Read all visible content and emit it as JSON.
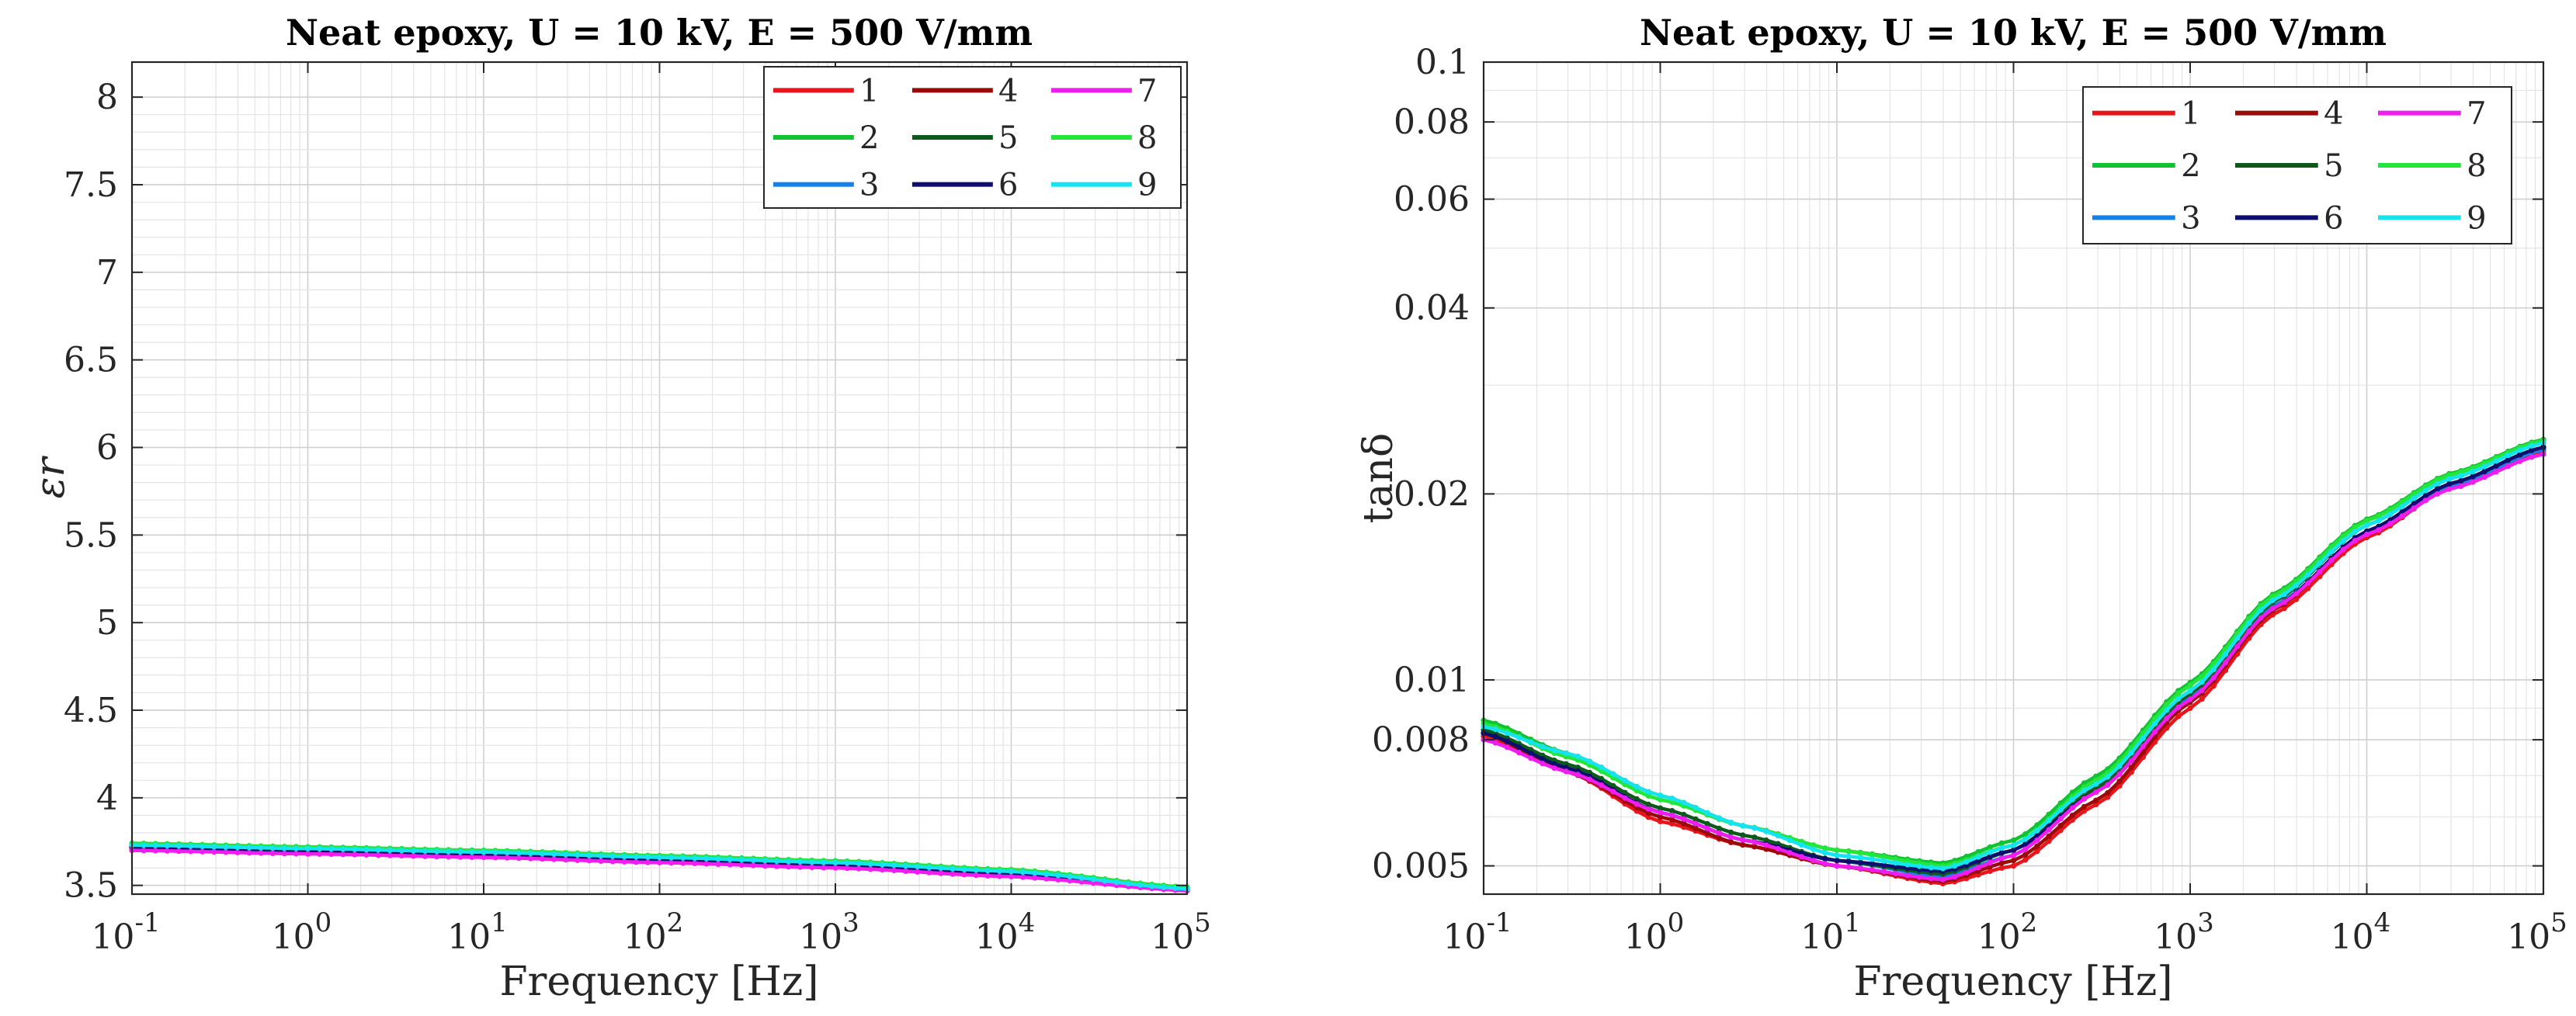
{
  "chart_data": [
    {
      "type": "line",
      "title": "Neat epoxy, U = 10 kV, E = 500 V/mm",
      "xlabel": "Frequency [Hz]",
      "ylabel": "εr",
      "xscale": "log",
      "xlim": [
        0.1,
        100000
      ],
      "ylim": [
        3.45,
        8.2
      ],
      "xticks": [
        {
          "base": "10",
          "exp": "-1"
        },
        {
          "base": "10",
          "exp": "0"
        },
        {
          "base": "10",
          "exp": "1"
        },
        {
          "base": "10",
          "exp": "2"
        },
        {
          "base": "10",
          "exp": "3"
        },
        {
          "base": "10",
          "exp": "4"
        },
        {
          "base": "10",
          "exp": "5"
        }
      ],
      "yticks": [
        {
          "value": 3.5,
          "label": "3.5"
        },
        {
          "value": 4,
          "label": "4"
        },
        {
          "value": 4.5,
          "label": "4.5"
        },
        {
          "value": 5,
          "label": "5"
        },
        {
          "value": 5.5,
          "label": "5.5"
        },
        {
          "value": 6,
          "label": "6"
        },
        {
          "value": 6.5,
          "label": "6.5"
        },
        {
          "value": 7,
          "label": "7"
        },
        {
          "value": 7.5,
          "label": "7.5"
        },
        {
          "value": 8,
          "label": "8"
        }
      ],
      "grid": true,
      "legend_position": "top-right",
      "x": [
        0.1,
        1,
        10,
        100,
        1000,
        10000,
        100000
      ],
      "series": [
        {
          "name": "1",
          "color": "#e8161b",
          "values": [
            3.71,
            3.69,
            3.67,
            3.64,
            3.61,
            3.56,
            3.47
          ]
        },
        {
          "name": "2",
          "color": "#10c431",
          "values": [
            3.74,
            3.71,
            3.69,
            3.66,
            3.63,
            3.58,
            3.49
          ]
        },
        {
          "name": "3",
          "color": "#1680e6",
          "values": [
            3.72,
            3.7,
            3.68,
            3.65,
            3.62,
            3.57,
            3.48
          ]
        },
        {
          "name": "4",
          "color": "#9c0a08",
          "values": [
            3.72,
            3.7,
            3.68,
            3.65,
            3.62,
            3.57,
            3.48
          ]
        },
        {
          "name": "5",
          "color": "#0c5a1a",
          "values": [
            3.73,
            3.7,
            3.68,
            3.65,
            3.62,
            3.57,
            3.48
          ]
        },
        {
          "name": "6",
          "color": "#0e0e6e",
          "values": [
            3.72,
            3.7,
            3.68,
            3.65,
            3.62,
            3.57,
            3.48
          ]
        },
        {
          "name": "7",
          "color": "#f01cf0",
          "values": [
            3.7,
            3.68,
            3.66,
            3.63,
            3.6,
            3.55,
            3.47
          ]
        },
        {
          "name": "8",
          "color": "#22e63a",
          "values": [
            3.74,
            3.72,
            3.7,
            3.67,
            3.64,
            3.59,
            3.49
          ]
        },
        {
          "name": "9",
          "color": "#14e4f0",
          "values": [
            3.73,
            3.71,
            3.69,
            3.66,
            3.63,
            3.58,
            3.48
          ]
        }
      ]
    },
    {
      "type": "line",
      "title": "Neat epoxy, U = 10 kV, E = 500 V/mm",
      "xlabel": "Frequency [Hz]",
      "ylabel": "tanδ",
      "xscale": "log",
      "yscale": "log",
      "xlim": [
        0.1,
        100000
      ],
      "ylim": [
        0.0045,
        0.1
      ],
      "xticks": [
        {
          "base": "10",
          "exp": "-1"
        },
        {
          "base": "10",
          "exp": "0"
        },
        {
          "base": "10",
          "exp": "1"
        },
        {
          "base": "10",
          "exp": "2"
        },
        {
          "base": "10",
          "exp": "3"
        },
        {
          "base": "10",
          "exp": "4"
        },
        {
          "base": "10",
          "exp": "5"
        }
      ],
      "yticks": [
        {
          "value": 0.005,
          "label": "0.005"
        },
        {
          "value": 0.008,
          "label": "0.008"
        },
        {
          "value": 0.01,
          "label": "0.01"
        },
        {
          "value": 0.02,
          "label": "0.02"
        },
        {
          "value": 0.04,
          "label": "0.04"
        },
        {
          "value": 0.06,
          "label": "0.06"
        },
        {
          "value": 0.08,
          "label": "0.08"
        },
        {
          "value": 0.1,
          "label": "0.1"
        }
      ],
      "grid": true,
      "legend_position": "top-right",
      "x": [
        0.1,
        0.3,
        1,
        3,
        10,
        40,
        100,
        300,
        1000,
        3000,
        10000,
        30000,
        100000
      ],
      "series": [
        {
          "name": "1",
          "color": "#e8161b",
          "values": [
            0.0081,
            0.0071,
            0.0059,
            0.0054,
            0.005,
            0.00468,
            0.005,
            0.0063,
            0.009,
            0.0128,
            0.017,
            0.0205,
            0.0235
          ]
        },
        {
          "name": "2",
          "color": "#10c431",
          "values": [
            0.0086,
            0.0076,
            0.0065,
            0.0058,
            0.0053,
            0.00505,
            0.0055,
            0.007,
            0.0099,
            0.0138,
            0.0182,
            0.0216,
            0.0245
          ]
        },
        {
          "name": "3",
          "color": "#1680e6",
          "values": [
            0.0082,
            0.0072,
            0.0061,
            0.0055,
            0.0051,
            0.0048,
            0.0052,
            0.0066,
            0.0094,
            0.0132,
            0.0172,
            0.0206,
            0.0236
          ]
        },
        {
          "name": "4",
          "color": "#9c0a08",
          "values": [
            0.0082,
            0.0071,
            0.006,
            0.0054,
            0.005,
            0.00472,
            0.0051,
            0.0064,
            0.0092,
            0.013,
            0.0174,
            0.0208,
            0.0238
          ]
        },
        {
          "name": "5",
          "color": "#0c5a1a",
          "values": [
            0.0083,
            0.0073,
            0.0062,
            0.0056,
            0.0051,
            0.00485,
            0.0053,
            0.0067,
            0.0095,
            0.0134,
            0.0178,
            0.0212,
            0.0242
          ]
        },
        {
          "name": "6",
          "color": "#0e0e6e",
          "values": [
            0.0082,
            0.0072,
            0.0061,
            0.0055,
            0.0051,
            0.0049,
            0.0053,
            0.0066,
            0.0093,
            0.0131,
            0.0174,
            0.0208,
            0.0238
          ]
        },
        {
          "name": "7",
          "color": "#f01cf0",
          "values": [
            0.008,
            0.0071,
            0.0061,
            0.0055,
            0.005,
            0.00475,
            0.0052,
            0.0066,
            0.0093,
            0.0131,
            0.0172,
            0.0204,
            0.0232
          ]
        },
        {
          "name": "8",
          "color": "#22e63a",
          "values": [
            0.0085,
            0.0075,
            0.0064,
            0.0058,
            0.0053,
            0.005,
            0.0054,
            0.0069,
            0.0098,
            0.0137,
            0.0181,
            0.0215,
            0.0244
          ]
        },
        {
          "name": "9",
          "color": "#14e4f0",
          "values": [
            0.0084,
            0.0076,
            0.0065,
            0.0058,
            0.0052,
            0.00495,
            0.0054,
            0.0068,
            0.0096,
            0.0135,
            0.0178,
            0.0212,
            0.0242
          ]
        }
      ]
    }
  ]
}
